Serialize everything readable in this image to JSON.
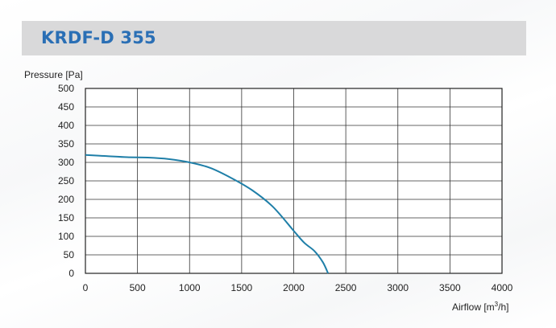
{
  "title": "KRDF-D 355",
  "chart_data": {
    "type": "line",
    "title": "KRDF-D 355",
    "ylabel": "Pressure [Pa]",
    "xlabel_main": "Airflow [m",
    "xlabel_sup": "3",
    "xlabel_end": "/h]",
    "xlim": [
      0,
      4000
    ],
    "ylim": [
      0,
      500
    ],
    "x_ticks": [
      0,
      500,
      1000,
      1500,
      2000,
      2500,
      3000,
      3500,
      4000
    ],
    "y_ticks": [
      0,
      50,
      100,
      150,
      200,
      250,
      300,
      350,
      400,
      450,
      500
    ],
    "grid": true,
    "series": [
      {
        "color": "#1f7fa8",
        "x": [
          0,
          200,
          400,
          600,
          800,
          1000,
          1200,
          1400,
          1600,
          1800,
          2000,
          2100,
          2200,
          2280,
          2330
        ],
        "y": [
          320,
          317,
          314,
          313,
          309,
          300,
          285,
          258,
          225,
          180,
          115,
          83,
          60,
          30,
          0
        ]
      }
    ]
  }
}
